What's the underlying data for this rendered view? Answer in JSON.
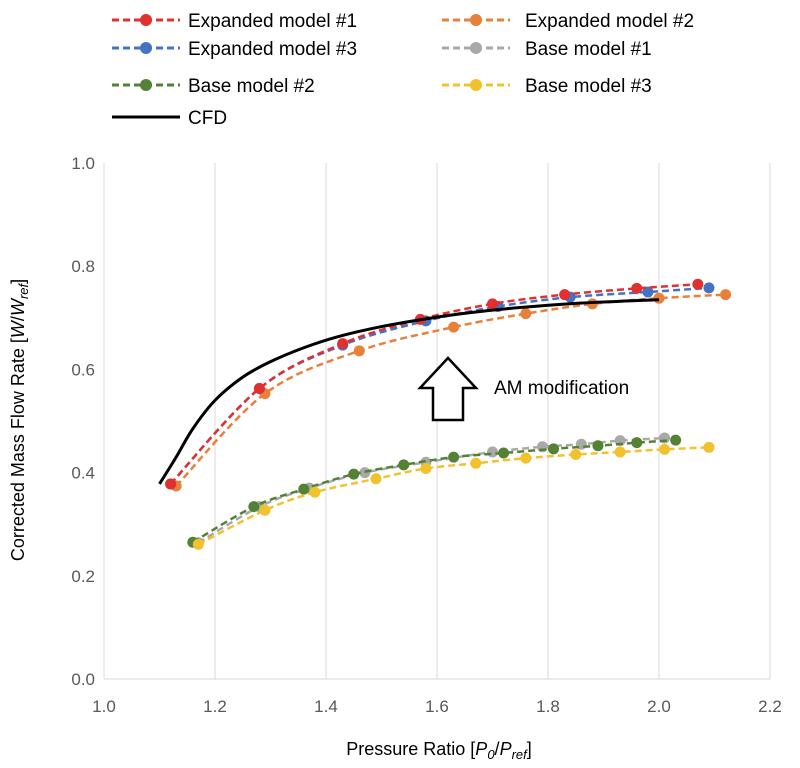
{
  "chart_data": {
    "type": "line",
    "xlabel": {
      "prefix": "Pressure Ratio [",
      "v1": "P",
      "s1": "0",
      "slash": "/",
      "v2": "P",
      "s2": "ref",
      "suffix": "]"
    },
    "ylabel": {
      "prefix": "Corrected Mass Flow Rate [",
      "v1": "W",
      "slash": "/",
      "v2": "W",
      "s2": "ref",
      "suffix": "]"
    },
    "xlim": [
      1.0,
      2.2
    ],
    "ylim": [
      0.0,
      1.0
    ],
    "xticks": [
      "1.0",
      "1.2",
      "1.4",
      "1.6",
      "1.8",
      "2.0",
      "2.2"
    ],
    "yticks": [
      "0.0",
      "0.2",
      "0.4",
      "0.6",
      "0.8",
      "1.0"
    ],
    "grid": "vertical",
    "legend_position": "top",
    "annotation": {
      "text": "AM modification",
      "x": 1.62,
      "y": 0.56
    },
    "series": [
      {
        "name": "Expanded model #1",
        "color": "#e03030",
        "style": "dashed-markers",
        "x": [
          1.12,
          1.28,
          1.43,
          1.57,
          1.7,
          1.83,
          1.96,
          2.07
        ],
        "y": [
          0.378,
          0.563,
          0.65,
          0.697,
          0.727,
          0.745,
          0.757,
          0.765
        ]
      },
      {
        "name": "Expanded model #2",
        "color": "#e8803a",
        "style": "dashed-markers",
        "x": [
          1.13,
          1.29,
          1.46,
          1.63,
          1.76,
          1.88,
          2.0,
          2.12
        ],
        "y": [
          0.374,
          0.553,
          0.636,
          0.682,
          0.708,
          0.727,
          0.738,
          0.745
        ]
      },
      {
        "name": "Expanded model #3",
        "color": "#4472c4",
        "style": "dashed-markers",
        "x": [
          1.12,
          1.28,
          1.43,
          1.58,
          1.71,
          1.84,
          1.98,
          2.09
        ],
        "y": [
          0.378,
          0.563,
          0.647,
          0.694,
          0.722,
          0.74,
          0.75,
          0.758
        ]
      },
      {
        "name": "Base model #1",
        "color": "#a9a9a9",
        "style": "dashed-markers",
        "x": [
          1.17,
          1.28,
          1.37,
          1.47,
          1.58,
          1.7,
          1.79,
          1.86,
          1.93,
          2.01
        ],
        "y": [
          0.264,
          0.334,
          0.37,
          0.4,
          0.42,
          0.44,
          0.45,
          0.455,
          0.462,
          0.467
        ]
      },
      {
        "name": "Base model #2",
        "color": "#548235",
        "style": "dashed-markers",
        "x": [
          1.16,
          1.27,
          1.36,
          1.45,
          1.54,
          1.63,
          1.72,
          1.81,
          1.89,
          1.96,
          2.03
        ],
        "y": [
          0.265,
          0.334,
          0.368,
          0.397,
          0.415,
          0.43,
          0.438,
          0.446,
          0.452,
          0.458,
          0.463
        ]
      },
      {
        "name": "Base model #3",
        "color": "#f2c12e",
        "style": "dashed-markers",
        "x": [
          1.17,
          1.29,
          1.38,
          1.49,
          1.58,
          1.67,
          1.76,
          1.85,
          1.93,
          2.01,
          2.09
        ],
        "y": [
          0.261,
          0.327,
          0.362,
          0.388,
          0.408,
          0.418,
          0.428,
          0.435,
          0.44,
          0.445,
          0.449
        ]
      },
      {
        "name": "CFD",
        "color": "#000000",
        "style": "solid",
        "x": [
          1.1,
          1.13,
          1.16,
          1.2,
          1.25,
          1.3,
          1.36,
          1.42,
          1.5,
          1.58,
          1.66,
          1.75,
          1.85,
          1.95,
          2.0
        ],
        "y": [
          0.378,
          0.43,
          0.485,
          0.54,
          0.585,
          0.615,
          0.642,
          0.663,
          0.683,
          0.698,
          0.71,
          0.72,
          0.728,
          0.733,
          0.735
        ]
      }
    ]
  }
}
